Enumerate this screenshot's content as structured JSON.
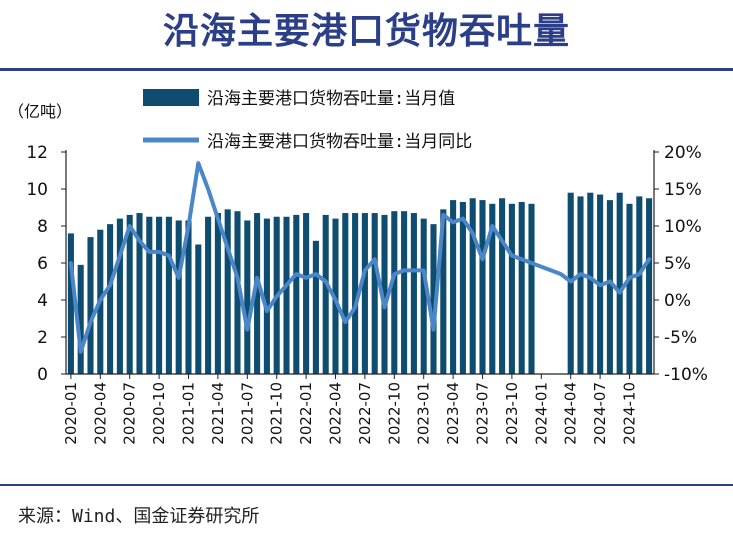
{
  "title": "沿海主要港口货物吞吐量",
  "source": "来源：Wind、国金证券研究所",
  "colors": {
    "bar": "#0e4d6f",
    "line": "#4a86c8",
    "title": "#2b3f88"
  },
  "chart_data": {
    "type": "bar+line",
    "left_unit": "（亿吨）",
    "left_axis": {
      "min": 0,
      "max": 12,
      "step": 2,
      "tick_labels": [
        "0",
        "2",
        "4",
        "6",
        "8",
        "10",
        "12"
      ]
    },
    "right_axis": {
      "min": -10,
      "max": 20,
      "step": 5,
      "tick_labels": [
        "-10%",
        "-5%",
        "0%",
        "5%",
        "10%",
        "15%",
        "20%"
      ]
    },
    "x_tick_labels": [
      "2020-01",
      "2020-04",
      "2020-07",
      "2020-10",
      "2021-01",
      "2021-04",
      "2021-07",
      "2021-10",
      "2022-01",
      "2022-04",
      "2022-07",
      "2022-10",
      "2023-01",
      "2023-04",
      "2023-07",
      "2023-10",
      "2024-01",
      "2024-04",
      "2024-07",
      "2024-10"
    ],
    "categories": [
      "2020-01",
      "2020-02",
      "2020-03",
      "2020-04",
      "2020-05",
      "2020-06",
      "2020-07",
      "2020-08",
      "2020-09",
      "2020-10",
      "2020-11",
      "2020-12",
      "2021-01",
      "2021-02",
      "2021-03",
      "2021-04",
      "2021-05",
      "2021-06",
      "2021-07",
      "2021-08",
      "2021-09",
      "2021-10",
      "2021-11",
      "2021-12",
      "2022-01",
      "2022-02",
      "2022-03",
      "2022-04",
      "2022-05",
      "2022-06",
      "2022-07",
      "2022-08",
      "2022-09",
      "2022-10",
      "2022-11",
      "2022-12",
      "2023-01",
      "2023-02",
      "2023-03",
      "2023-04",
      "2023-05",
      "2023-06",
      "2023-07",
      "2023-08",
      "2023-09",
      "2023-10",
      "2023-11",
      "2023-12",
      "2024-01",
      "2024-02",
      "2024-03",
      "2024-04",
      "2024-05",
      "2024-06",
      "2024-07",
      "2024-08",
      "2024-09",
      "2024-10",
      "2024-11",
      "2024-12"
    ],
    "series": [
      {
        "name": "沿海主要港口货物吞吐量:当月值",
        "type": "bar",
        "axis": "left",
        "values": [
          7.6,
          5.9,
          7.4,
          7.8,
          8.1,
          8.4,
          8.6,
          8.7,
          8.5,
          8.5,
          8.5,
          8.3,
          8.3,
          7.0,
          8.5,
          8.7,
          8.9,
          8.8,
          8.3,
          8.7,
          8.4,
          8.5,
          8.5,
          8.6,
          8.7,
          7.2,
          8.6,
          8.4,
          8.7,
          8.7,
          8.7,
          8.7,
          8.6,
          8.8,
          8.8,
          8.7,
          8.4,
          8.1,
          8.9,
          9.4,
          9.3,
          9.5,
          9.4,
          9.2,
          9.5,
          9.2,
          9.3,
          9.2,
          null,
          null,
          null,
          9.8,
          9.6,
          9.8,
          9.7,
          9.4,
          9.8,
          9.2,
          9.6,
          9.5
        ]
      },
      {
        "name": "沿海主要港口货物吞吐量:当月同比",
        "type": "line",
        "axis": "right",
        "values": [
          5.0,
          -7.0,
          -3.0,
          0.0,
          2.0,
          6.0,
          10.0,
          8.0,
          6.5,
          6.5,
          6.0,
          3.0,
          10.0,
          18.5,
          15.0,
          11.0,
          7.0,
          3.0,
          -4.0,
          3.0,
          -1.5,
          0.5,
          2.0,
          3.5,
          3.0,
          3.5,
          2.5,
          0.0,
          -3.0,
          -1.0,
          4.0,
          5.5,
          -1.0,
          3.5,
          4.0,
          4.0,
          4.0,
          -4.0,
          11.5,
          10.5,
          11.0,
          9.0,
          5.5,
          10.0,
          8.0,
          6.0,
          5.5,
          5.0,
          4.5,
          4.0,
          3.5,
          2.5,
          3.5,
          3.0,
          2.0,
          2.5,
          1.0,
          3.0,
          3.5,
          5.5
        ]
      }
    ],
    "legend_position": "top-center",
    "grid": false
  }
}
